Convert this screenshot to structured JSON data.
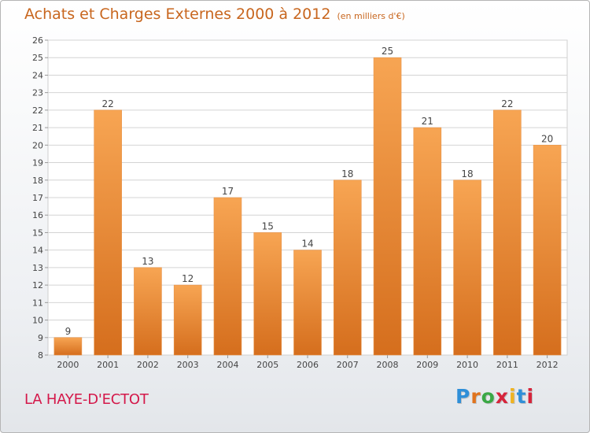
{
  "title": "Achats et Charges Externes 2000 à 2012",
  "subtitle": "(en milliers d'€)",
  "location": "LA HAYE-D'ECTOT",
  "logo": {
    "text": "Proxiti",
    "letters": [
      "P",
      "r",
      "o",
      "x",
      "i",
      "t",
      "i"
    ],
    "colors": [
      "#2f8fd8",
      "#e0731d",
      "#3aa845",
      "#d6243b",
      "#f0b320",
      "#2f8fd8",
      "#d6243b"
    ]
  },
  "colors": {
    "bar_light": "#f7a553",
    "bar_dark": "#d56e1d",
    "grid": "#d4d4d4",
    "title": "#c8661e",
    "location": "#d4184a"
  },
  "chart_data": {
    "type": "bar",
    "title": "Achats et Charges Externes 2000 à 2012",
    "subtitle": "(en milliers d'€)",
    "categories": [
      "2000",
      "2001",
      "2002",
      "2003",
      "2004",
      "2005",
      "2006",
      "2007",
      "2008",
      "2009",
      "2010",
      "2011",
      "2012"
    ],
    "values": [
      9,
      22,
      13,
      12,
      17,
      15,
      14,
      18,
      25,
      21,
      18,
      22,
      20
    ],
    "data_labels": [
      "9",
      "22",
      "13",
      "12",
      "17",
      "15",
      "14",
      "18",
      "25",
      "21",
      "18",
      "22",
      "20"
    ],
    "ylim": [
      8,
      26
    ],
    "yticks": [
      "8",
      "9",
      "10",
      "11",
      "12",
      "13",
      "14",
      "15",
      "16",
      "17",
      "18",
      "19",
      "20",
      "21",
      "22",
      "23",
      "24",
      "25",
      "26"
    ],
    "grid": true
  }
}
